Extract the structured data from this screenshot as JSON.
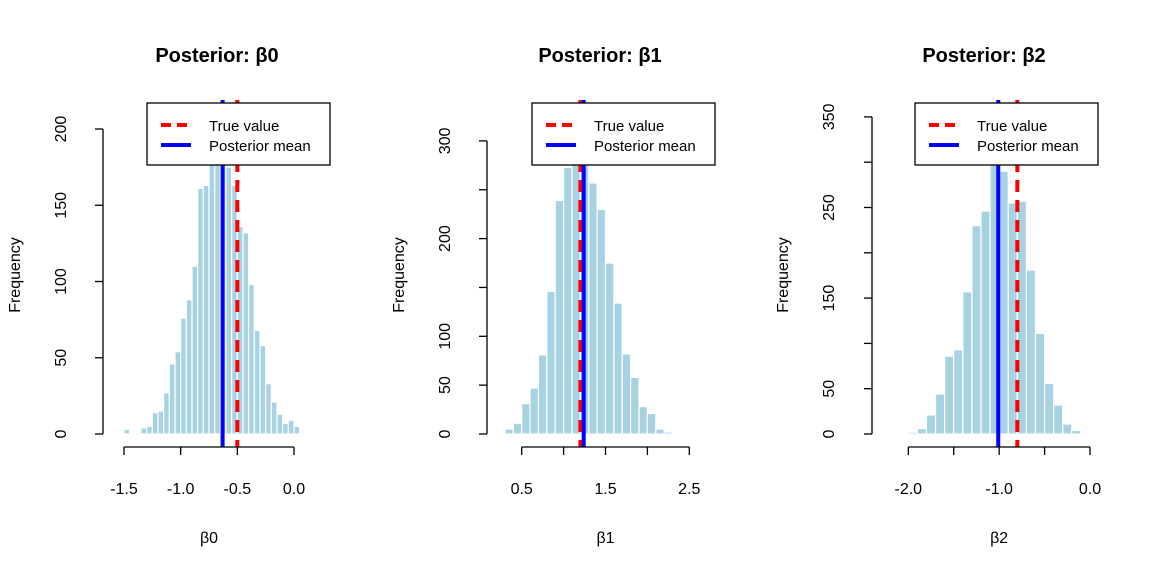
{
  "chart_data": [
    {
      "type": "bar",
      "title": "Posterior: β0",
      "xlabel": "β0",
      "ylabel": "Frequency",
      "bin_start": -1.5,
      "bin_width": 0.05,
      "values": [
        3,
        0,
        1,
        4,
        5,
        14,
        15,
        27,
        46,
        54,
        76,
        88,
        110,
        161,
        163,
        185,
        200,
        190,
        175,
        163,
        136,
        132,
        98,
        68,
        58,
        33,
        21,
        13,
        7,
        9,
        5
      ],
      "xticks": [
        -1.5,
        -1.0,
        -0.5,
        0.0
      ],
      "xtick_labels": [
        "-1.5",
        "-1.0",
        "-0.5",
        "0.0"
      ],
      "yticks": [
        0,
        50,
        100,
        150,
        200
      ],
      "ytick_labels": [
        "0",
        "50",
        "100",
        "150",
        "200"
      ],
      "xlim": [
        -1.56,
        0.12
      ],
      "ylim": [
        0,
        200
      ],
      "true_value": -0.5,
      "posterior_mean": -0.63,
      "legend": {
        "placement": "top-right",
        "entries": [
          "True value",
          "Posterior mean"
        ]
      },
      "bar_color": "#a6d2e2",
      "true_color": "#ff0000",
      "mean_color": "#0000ff"
    },
    {
      "type": "bar",
      "title": "Posterior: β1",
      "xlabel": "β1",
      "ylabel": "Frequency",
      "bin_start": 0.3,
      "bin_width": 0.1,
      "values": [
        5,
        11,
        31,
        47,
        81,
        146,
        239,
        273,
        300,
        290,
        257,
        230,
        175,
        134,
        82,
        58,
        28,
        21,
        5,
        2
      ],
      "xticks": [
        0.5,
        1.0,
        1.5,
        2.0,
        2.5
      ],
      "xtick_labels": [
        "0.5",
        "",
        "1.5",
        "",
        "2.5"
      ],
      "yticks": [
        0,
        50,
        100,
        150,
        200,
        250,
        300
      ],
      "ytick_labels": [
        "0",
        "50",
        "100",
        "",
        "200",
        "",
        "300"
      ],
      "xlim": [
        0.3,
        2.5
      ],
      "ylim": [
        0,
        300
      ],
      "true_value": 1.2,
      "posterior_mean": 1.24,
      "legend": {
        "placement": "top-right",
        "entries": [
          "True value",
          "Posterior mean"
        ]
      },
      "bar_color": "#a6d2e2",
      "true_color": "#ff0000",
      "mean_color": "#0000ff"
    },
    {
      "type": "bar",
      "title": "Posterior: β2",
      "xlabel": "β2",
      "ylabel": "Frequency",
      "bin_start": -2.0,
      "bin_width": 0.1,
      "values": [
        2,
        6,
        21,
        44,
        86,
        93,
        157,
        230,
        246,
        300,
        290,
        255,
        257,
        181,
        111,
        56,
        32,
        11,
        4
      ],
      "xticks": [
        -2.0,
        -1.5,
        -1.0,
        -0.5,
        0.0
      ],
      "xtick_labels": [
        "-2.0",
        "",
        "-1.0",
        "",
        "0.0"
      ],
      "yticks": [
        0,
        50,
        100,
        150,
        200,
        250,
        300,
        350
      ],
      "ytick_labels": [
        "0",
        "50",
        "",
        "150",
        "",
        "250",
        "",
        "350"
      ],
      "xlim": [
        -2.0,
        0.0
      ],
      "ylim": [
        0,
        350
      ],
      "true_value": -0.8,
      "posterior_mean": -1.01,
      "legend": {
        "placement": "top-right",
        "entries": [
          "True value",
          "Posterior mean"
        ]
      },
      "bar_color": "#a6d2e2",
      "true_color": "#ff0000",
      "mean_color": "#0000ff"
    }
  ]
}
